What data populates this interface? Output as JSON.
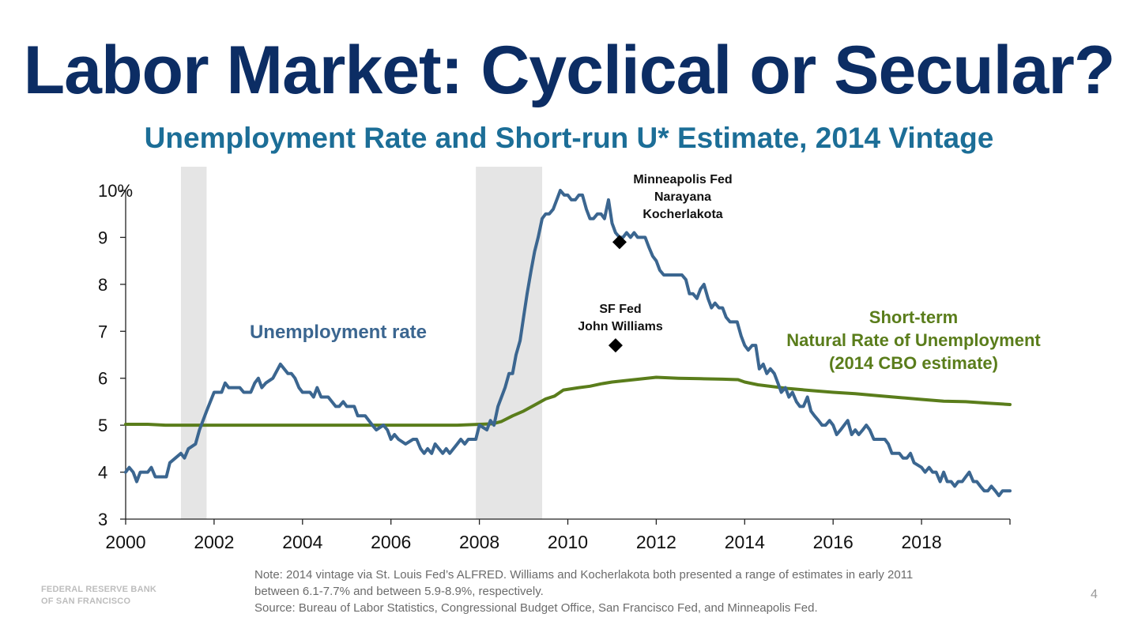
{
  "slide": {
    "title": "Labor Market: Cyclical or Secular?",
    "subtitle": "Unemployment Rate and Short-run U* Estimate, 2014 Vintage",
    "note_line1": "Note: 2014 vintage via St. Louis Fed’s ALFRED. Williams and Kocherlakota both presented a range of estimates in early 2011",
    "note_line2": "between 6.1-7.7% and between 5.9-8.9%, respectively.",
    "source": "Source: Bureau of Labor Statistics, Congressional Budget Office, San Francisco Fed, and Minneapolis Fed.",
    "logo_line1": "FEDERAL RESERVE BANK",
    "logo_line2": "OF SAN FRANCISCO",
    "page_number": "4"
  },
  "chart_data": {
    "type": "line",
    "xlim": [
      2000,
      2020
    ],
    "ylim": [
      3,
      10
    ],
    "x_ticks": [
      2000,
      2002,
      2004,
      2006,
      2008,
      2010,
      2012,
      2014,
      2016,
      2018
    ],
    "x_tick_labels": [
      "2000",
      "2002",
      "2004",
      "2006",
      "2008",
      "2010",
      "2012",
      "2014",
      "2016",
      "2018"
    ],
    "y_ticks": [
      3,
      4,
      5,
      6,
      7,
      8,
      9,
      10
    ],
    "y_tick_labels": [
      "3",
      "4",
      "5",
      "6",
      "7",
      "8",
      "9",
      "10%"
    ],
    "recessions": [
      [
        2001.25,
        2001.83
      ],
      [
        2007.92,
        2009.42
      ]
    ],
    "series": [
      {
        "name": "Unemployment rate",
        "color": "#3b6690",
        "points": [
          [
            2000.0,
            4.0
          ],
          [
            2000.08,
            4.1
          ],
          [
            2000.17,
            4.0
          ],
          [
            2000.25,
            3.8
          ],
          [
            2000.33,
            4.0
          ],
          [
            2000.5,
            4.0
          ],
          [
            2000.58,
            4.1
          ],
          [
            2000.67,
            3.9
          ],
          [
            2000.92,
            3.9
          ],
          [
            2001.0,
            4.2
          ],
          [
            2001.25,
            4.4
          ],
          [
            2001.33,
            4.3
          ],
          [
            2001.42,
            4.5
          ],
          [
            2001.58,
            4.6
          ],
          [
            2001.67,
            4.9
          ],
          [
            2001.83,
            5.3
          ],
          [
            2002.0,
            5.7
          ],
          [
            2002.17,
            5.7
          ],
          [
            2002.25,
            5.9
          ],
          [
            2002.33,
            5.8
          ],
          [
            2002.58,
            5.8
          ],
          [
            2002.67,
            5.7
          ],
          [
            2002.83,
            5.7
          ],
          [
            2002.92,
            5.9
          ],
          [
            2003.0,
            6.0
          ],
          [
            2003.08,
            5.8
          ],
          [
            2003.17,
            5.9
          ],
          [
            2003.33,
            6.0
          ],
          [
            2003.5,
            6.3
          ],
          [
            2003.67,
            6.1
          ],
          [
            2003.75,
            6.1
          ],
          [
            2003.83,
            6.0
          ],
          [
            2003.92,
            5.8
          ],
          [
            2004.0,
            5.7
          ],
          [
            2004.17,
            5.7
          ],
          [
            2004.25,
            5.6
          ],
          [
            2004.33,
            5.8
          ],
          [
            2004.42,
            5.6
          ],
          [
            2004.58,
            5.6
          ],
          [
            2004.75,
            5.4
          ],
          [
            2004.83,
            5.4
          ],
          [
            2004.92,
            5.5
          ],
          [
            2005.0,
            5.4
          ],
          [
            2005.17,
            5.4
          ],
          [
            2005.25,
            5.2
          ],
          [
            2005.42,
            5.2
          ],
          [
            2005.58,
            5.0
          ],
          [
            2005.67,
            4.9
          ],
          [
            2005.83,
            5.0
          ],
          [
            2005.92,
            4.9
          ],
          [
            2006.0,
            4.7
          ],
          [
            2006.08,
            4.8
          ],
          [
            2006.17,
            4.7
          ],
          [
            2006.33,
            4.6
          ],
          [
            2006.5,
            4.7
          ],
          [
            2006.58,
            4.7
          ],
          [
            2006.67,
            4.5
          ],
          [
            2006.75,
            4.4
          ],
          [
            2006.83,
            4.5
          ],
          [
            2006.92,
            4.4
          ],
          [
            2007.0,
            4.6
          ],
          [
            2007.17,
            4.4
          ],
          [
            2007.25,
            4.5
          ],
          [
            2007.33,
            4.4
          ],
          [
            2007.5,
            4.6
          ],
          [
            2007.58,
            4.7
          ],
          [
            2007.67,
            4.6
          ],
          [
            2007.75,
            4.7
          ],
          [
            2007.92,
            4.7
          ],
          [
            2008.0,
            5.0
          ],
          [
            2008.17,
            4.9
          ],
          [
            2008.25,
            5.1
          ],
          [
            2008.33,
            5.0
          ],
          [
            2008.42,
            5.4
          ],
          [
            2008.58,
            5.8
          ],
          [
            2008.67,
            6.1
          ],
          [
            2008.75,
            6.1
          ],
          [
            2008.83,
            6.5
          ],
          [
            2008.92,
            6.8
          ],
          [
            2009.0,
            7.3
          ],
          [
            2009.08,
            7.8
          ],
          [
            2009.17,
            8.3
          ],
          [
            2009.25,
            8.7
          ],
          [
            2009.33,
            9.0
          ],
          [
            2009.42,
            9.4
          ],
          [
            2009.5,
            9.5
          ],
          [
            2009.58,
            9.5
          ],
          [
            2009.67,
            9.6
          ],
          [
            2009.75,
            9.8
          ],
          [
            2009.83,
            10.0
          ],
          [
            2009.92,
            9.9
          ],
          [
            2010.0,
            9.9
          ],
          [
            2010.08,
            9.8
          ],
          [
            2010.17,
            9.8
          ],
          [
            2010.25,
            9.9
          ],
          [
            2010.33,
            9.9
          ],
          [
            2010.42,
            9.6
          ],
          [
            2010.5,
            9.4
          ],
          [
            2010.58,
            9.4
          ],
          [
            2010.67,
            9.5
          ],
          [
            2010.75,
            9.5
          ],
          [
            2010.83,
            9.4
          ],
          [
            2010.92,
            9.8
          ],
          [
            2011.0,
            9.3
          ],
          [
            2011.08,
            9.1
          ],
          [
            2011.17,
            9.0
          ],
          [
            2011.25,
            9.0
          ],
          [
            2011.33,
            9.1
          ],
          [
            2011.42,
            9.0
          ],
          [
            2011.5,
            9.1
          ],
          [
            2011.58,
            9.0
          ],
          [
            2011.67,
            9.0
          ],
          [
            2011.75,
            9.0
          ],
          [
            2011.83,
            8.8
          ],
          [
            2011.92,
            8.6
          ],
          [
            2012.0,
            8.5
          ],
          [
            2012.08,
            8.3
          ],
          [
            2012.17,
            8.2
          ],
          [
            2012.25,
            8.2
          ],
          [
            2012.33,
            8.2
          ],
          [
            2012.42,
            8.2
          ],
          [
            2012.5,
            8.2
          ],
          [
            2012.58,
            8.2
          ],
          [
            2012.67,
            8.1
          ],
          [
            2012.75,
            7.8
          ],
          [
            2012.83,
            7.8
          ],
          [
            2012.92,
            7.7
          ],
          [
            2013.0,
            7.9
          ],
          [
            2013.08,
            8.0
          ],
          [
            2013.17,
            7.7
          ],
          [
            2013.25,
            7.5
          ],
          [
            2013.33,
            7.6
          ],
          [
            2013.42,
            7.5
          ],
          [
            2013.5,
            7.5
          ],
          [
            2013.58,
            7.3
          ],
          [
            2013.67,
            7.2
          ],
          [
            2013.83,
            7.2
          ],
          [
            2013.92,
            6.9
          ],
          [
            2014.0,
            6.7
          ],
          [
            2014.08,
            6.6
          ],
          [
            2014.17,
            6.7
          ],
          [
            2014.25,
            6.7
          ],
          [
            2014.33,
            6.2
          ],
          [
            2014.42,
            6.3
          ],
          [
            2014.5,
            6.1
          ],
          [
            2014.58,
            6.2
          ],
          [
            2014.67,
            6.1
          ],
          [
            2014.75,
            5.9
          ],
          [
            2014.83,
            5.7
          ],
          [
            2014.92,
            5.8
          ],
          [
            2015.0,
            5.6
          ],
          [
            2015.08,
            5.7
          ],
          [
            2015.17,
            5.5
          ],
          [
            2015.25,
            5.4
          ],
          [
            2015.33,
            5.4
          ],
          [
            2015.42,
            5.6
          ],
          [
            2015.5,
            5.3
          ],
          [
            2015.58,
            5.2
          ],
          [
            2015.67,
            5.1
          ],
          [
            2015.75,
            5.0
          ],
          [
            2015.83,
            5.0
          ],
          [
            2015.92,
            5.1
          ],
          [
            2016.0,
            5.0
          ],
          [
            2016.08,
            4.8
          ],
          [
            2016.17,
            4.9
          ],
          [
            2016.25,
            5.0
          ],
          [
            2016.33,
            5.1
          ],
          [
            2016.42,
            4.8
          ],
          [
            2016.5,
            4.9
          ],
          [
            2016.58,
            4.8
          ],
          [
            2016.67,
            4.9
          ],
          [
            2016.75,
            5.0
          ],
          [
            2016.83,
            4.9
          ],
          [
            2016.92,
            4.7
          ],
          [
            2017.0,
            4.7
          ],
          [
            2017.17,
            4.7
          ],
          [
            2017.25,
            4.6
          ],
          [
            2017.33,
            4.4
          ],
          [
            2017.5,
            4.4
          ],
          [
            2017.58,
            4.3
          ],
          [
            2017.67,
            4.3
          ],
          [
            2017.75,
            4.4
          ],
          [
            2017.83,
            4.2
          ],
          [
            2018.0,
            4.1
          ],
          [
            2018.08,
            4.0
          ],
          [
            2018.17,
            4.1
          ],
          [
            2018.25,
            4.0
          ],
          [
            2018.33,
            4.0
          ],
          [
            2018.42,
            3.8
          ],
          [
            2018.5,
            4.0
          ],
          [
            2018.58,
            3.8
          ],
          [
            2018.67,
            3.8
          ],
          [
            2018.75,
            3.7
          ],
          [
            2018.83,
            3.8
          ],
          [
            2018.92,
            3.8
          ],
          [
            2019.0,
            3.9
          ],
          [
            2019.08,
            4.0
          ],
          [
            2019.17,
            3.8
          ],
          [
            2019.25,
            3.8
          ],
          [
            2019.33,
            3.7
          ],
          [
            2019.42,
            3.6
          ],
          [
            2019.5,
            3.6
          ],
          [
            2019.58,
            3.7
          ],
          [
            2019.67,
            3.6
          ],
          [
            2019.75,
            3.5
          ],
          [
            2019.83,
            3.6
          ],
          [
            2019.92,
            3.6
          ],
          [
            2020.0,
            3.6
          ]
        ]
      },
      {
        "name": "Short-term Natural Rate of Unemployment (2014 CBO estimate)",
        "color": "#5a7d1b",
        "points": [
          [
            2000.0,
            5.02
          ],
          [
            2000.5,
            5.02
          ],
          [
            2000.9,
            5.0
          ],
          [
            2002.0,
            5.0
          ],
          [
            2004.0,
            5.0
          ],
          [
            2006.0,
            5.0
          ],
          [
            2007.5,
            5.0
          ],
          [
            2008.3,
            5.03
          ],
          [
            2008.5,
            5.08
          ],
          [
            2008.75,
            5.2
          ],
          [
            2009.0,
            5.3
          ],
          [
            2009.25,
            5.43
          ],
          [
            2009.5,
            5.56
          ],
          [
            2009.7,
            5.62
          ],
          [
            2009.9,
            5.75
          ],
          [
            2010.25,
            5.8
          ],
          [
            2010.5,
            5.83
          ],
          [
            2010.75,
            5.88
          ],
          [
            2011.0,
            5.92
          ],
          [
            2011.5,
            5.97
          ],
          [
            2012.0,
            6.02
          ],
          [
            2012.5,
            6.0
          ],
          [
            2013.0,
            5.99
          ],
          [
            2013.5,
            5.98
          ],
          [
            2013.85,
            5.97
          ],
          [
            2014.0,
            5.92
          ],
          [
            2014.3,
            5.86
          ],
          [
            2015.0,
            5.78
          ],
          [
            2015.5,
            5.74
          ],
          [
            2016.0,
            5.7
          ],
          [
            2016.5,
            5.67
          ],
          [
            2017.0,
            5.63
          ],
          [
            2017.5,
            5.59
          ],
          [
            2018.0,
            5.55
          ],
          [
            2018.5,
            5.51
          ],
          [
            2019.0,
            5.5
          ],
          [
            2019.5,
            5.47
          ],
          [
            2020.0,
            5.44
          ]
        ]
      }
    ],
    "markers": [
      {
        "name": "Minneapolis Fed Narayana Kocherlakota",
        "x": 2011.17,
        "y": 8.9
      },
      {
        "name": "SF Fed John Williams",
        "x": 2011.08,
        "y": 6.7
      }
    ],
    "annotations": {
      "unemployment_label": "Unemployment rate",
      "natural_label_1": "Short-term",
      "natural_label_2": "Natural Rate of Unemployment",
      "natural_label_3": "(2014 CBO estimate)",
      "kocherlakota_1": "Minneapolis Fed",
      "kocherlakota_2": "Narayana",
      "kocherlakota_3": "Kocherlakota",
      "williams_1": "SF Fed",
      "williams_2": "John Williams"
    }
  }
}
